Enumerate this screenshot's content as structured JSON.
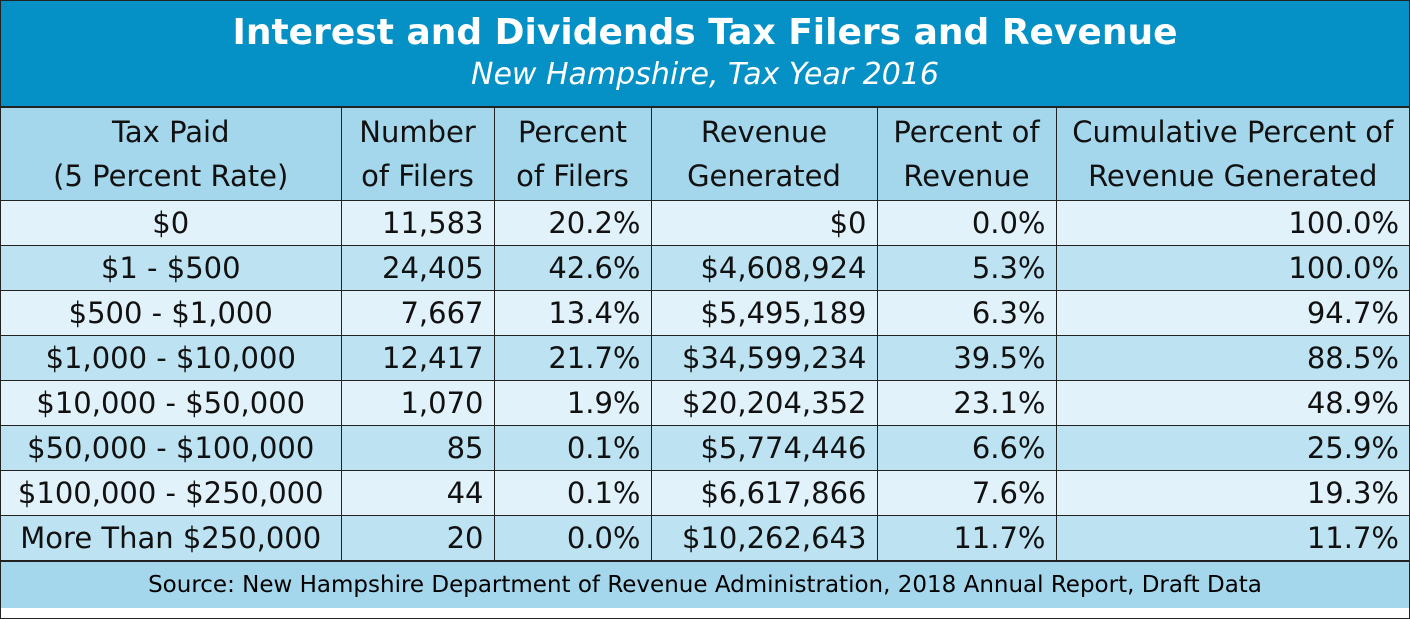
{
  "chart_data": {
    "type": "table",
    "title": "Interest and Dividends Tax Filers and Revenue",
    "subtitle": "New Hampshire, Tax Year 2016",
    "columns": [
      [
        "Tax Paid",
        "(5 Percent Rate)"
      ],
      [
        "Number",
        "of Filers"
      ],
      [
        "Percent",
        "of Filers"
      ],
      [
        "Revenue",
        "Generated"
      ],
      [
        "Percent of",
        "Revenue"
      ],
      [
        "Cumulative Percent of",
        "Revenue Generated"
      ]
    ],
    "rows": [
      [
        "$0",
        "11,583",
        "20.2%",
        "$0",
        "0.0%",
        "100.0%"
      ],
      [
        "$1 - $500",
        "24,405",
        "42.6%",
        "$4,608,924",
        "5.3%",
        "100.0%"
      ],
      [
        "$500 - $1,000",
        "7,667",
        "13.4%",
        "$5,495,189",
        "6.3%",
        "94.7%"
      ],
      [
        "$1,000 - $10,000",
        "12,417",
        "21.7%",
        "$34,599,234",
        "39.5%",
        "88.5%"
      ],
      [
        "$10,000 - $50,000",
        "1,070",
        "1.9%",
        "$20,204,352",
        "23.1%",
        "48.9%"
      ],
      [
        "$50,000 - $100,000",
        "85",
        "0.1%",
        "$5,774,446",
        "6.6%",
        "25.9%"
      ],
      [
        "$100,000 - $250,000",
        "44",
        "0.1%",
        "$6,617,866",
        "7.6%",
        "19.3%"
      ],
      [
        "More Than $250,000",
        "20",
        "0.0%",
        "$10,262,643",
        "11.7%",
        "11.7%"
      ]
    ],
    "source": "Source: New Hampshire Department of Revenue Administration, 2018 Annual Report, Draft Data"
  },
  "colors": {
    "title_bg": "#0590c6",
    "header_bg": "#a4d6ec",
    "row_light": "#e1f2fa",
    "row_dark": "#bde3f3"
  }
}
